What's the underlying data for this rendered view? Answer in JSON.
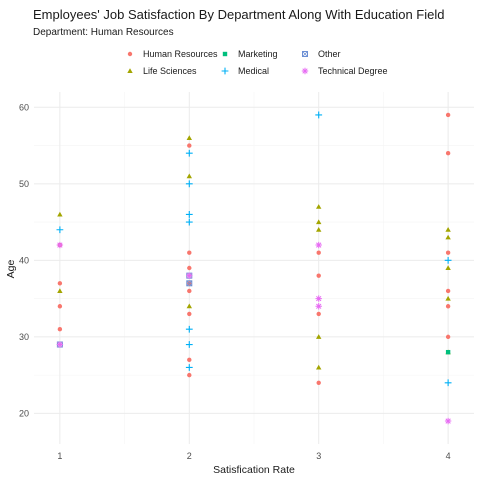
{
  "chart_data": {
    "type": "scatter",
    "title": "Employees' Job Satisfaction By Department Along With Education Field",
    "subtitle": "Department: Human Resources",
    "xlabel": "Satisfication Rate",
    "ylabel": "Age",
    "xlim": [
      0.8,
      4.2
    ],
    "ylim": [
      16,
      62
    ],
    "x_ticks": [
      1,
      2,
      3,
      4
    ],
    "y_ticks": [
      20,
      30,
      40,
      50,
      60
    ],
    "grid": true,
    "legend_position": "top",
    "series": [
      {
        "name": "Human Resources",
        "color": "#F8766D",
        "shape": "circle",
        "points": [
          [
            1,
            42
          ],
          [
            1,
            37
          ],
          [
            1,
            34
          ],
          [
            1,
            31
          ],
          [
            2,
            55
          ],
          [
            2,
            41
          ],
          [
            2,
            39
          ],
          [
            2,
            37
          ],
          [
            2,
            36
          ],
          [
            2,
            33
          ],
          [
            2,
            27
          ],
          [
            2,
            25
          ],
          [
            3,
            41
          ],
          [
            3,
            38
          ],
          [
            3,
            33
          ],
          [
            3,
            24
          ],
          [
            4,
            59
          ],
          [
            4,
            54
          ],
          [
            4,
            41
          ],
          [
            4,
            36
          ],
          [
            4,
            34
          ],
          [
            4,
            30
          ]
        ]
      },
      {
        "name": "Life Sciences",
        "color": "#A3A500",
        "shape": "triangle",
        "points": [
          [
            1,
            46
          ],
          [
            1,
            36
          ],
          [
            2,
            56
          ],
          [
            2,
            51
          ],
          [
            2,
            34
          ],
          [
            3,
            47
          ],
          [
            3,
            45
          ],
          [
            3,
            44
          ],
          [
            3,
            30
          ],
          [
            3,
            26
          ],
          [
            4,
            44
          ],
          [
            4,
            43
          ],
          [
            4,
            39
          ],
          [
            4,
            35
          ],
          [
            4,
            28
          ]
        ]
      },
      {
        "name": "Marketing",
        "color": "#00BF7D",
        "shape": "square",
        "points": [
          [
            4,
            28
          ]
        ]
      },
      {
        "name": "Medical",
        "color": "#00B0F6",
        "shape": "plus",
        "points": [
          [
            1,
            44
          ],
          [
            2,
            54
          ],
          [
            2,
            50
          ],
          [
            2,
            46
          ],
          [
            2,
            45
          ],
          [
            2,
            31
          ],
          [
            2,
            29
          ],
          [
            2,
            26
          ],
          [
            3,
            59
          ],
          [
            4,
            40
          ],
          [
            4,
            24
          ]
        ]
      },
      {
        "name": "Other",
        "color": "#6C8FD4",
        "shape": "square-x",
        "points": [
          [
            1,
            29
          ],
          [
            2,
            38
          ],
          [
            2,
            37
          ]
        ]
      },
      {
        "name": "Technical Degree",
        "color": "#E76BF3",
        "shape": "asterisk",
        "points": [
          [
            1,
            42
          ],
          [
            1,
            29
          ],
          [
            2,
            38
          ],
          [
            3,
            42
          ],
          [
            3,
            35
          ],
          [
            3,
            34
          ],
          [
            4,
            19
          ]
        ]
      }
    ]
  }
}
